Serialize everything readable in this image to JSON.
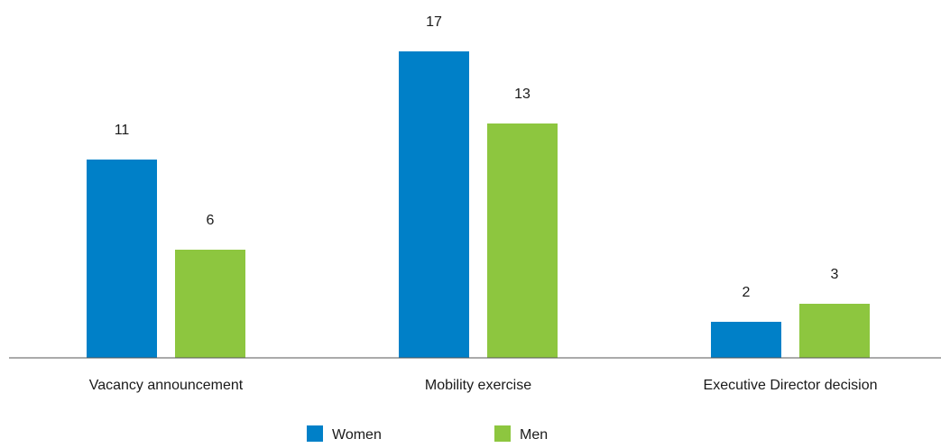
{
  "chart_data": {
    "type": "bar",
    "title": "",
    "xlabel": "",
    "ylabel": "",
    "categories": [
      "Vacancy announcement",
      "Mobility exercise",
      "Executive Director decision"
    ],
    "series": [
      {
        "name": "Women",
        "values": [
          11,
          17,
          2
        ],
        "color": "#0080c8"
      },
      {
        "name": "Men",
        "values": [
          6,
          13,
          3
        ],
        "color": "#8dc63f"
      }
    ],
    "ylim": [
      0,
      20
    ],
    "grid": false,
    "legend_position": "bottom-center",
    "data_labels": true,
    "axis_line_color": "#555555"
  }
}
